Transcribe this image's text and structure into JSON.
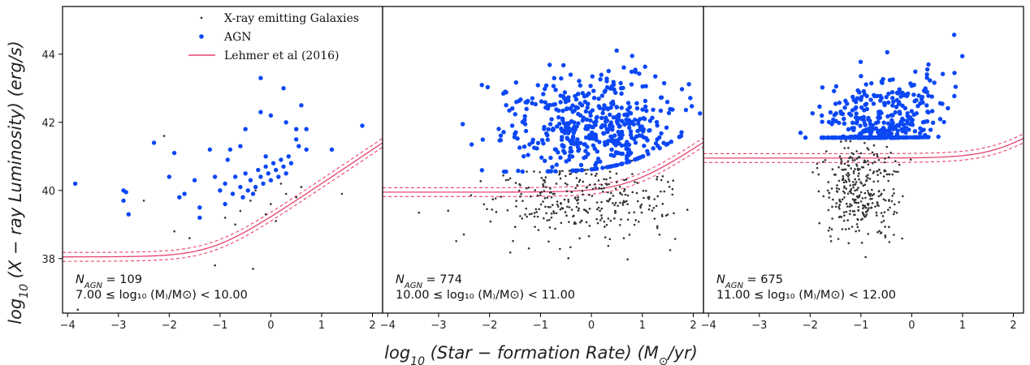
{
  "chart_data": {
    "type": "scatter",
    "ylabel_main": "log",
    "ylabel_sub": "10",
    "ylabel_rest": " (X − ray Luminosity) (erg/s)",
    "xlabel_main": "log",
    "xlabel_sub": "10",
    "xlabel_rest": " (Star − formation Rate) (M",
    "xlabel_sun": "⊙",
    "xlabel_tail": "/yr)",
    "xlim": [
      -4.1,
      2.2
    ],
    "ylim": [
      36.4,
      45.4
    ],
    "xticks": [
      -4,
      -3,
      -2,
      -1,
      0,
      1,
      2
    ],
    "yticks": [
      38,
      40,
      42,
      44
    ],
    "legend": {
      "position": "upper-left of first panel",
      "items": [
        {
          "label": "X-ray emitting Galaxies",
          "marker": "small-dot",
          "color": "#333333"
        },
        {
          "label": "AGN",
          "marker": "dot",
          "color": "#0b47f5"
        },
        {
          "label": "Lehmer et al (2016)",
          "marker": "line",
          "color": "#e8416e"
        }
      ]
    },
    "relation_color": "#e8416e",
    "galaxy_color": "#333333",
    "agn_color": "#0b47f5",
    "panels": [
      {
        "n_agn_label": "N",
        "n_agn_sub": "AGN",
        "n_agn_value": " = 109",
        "mass_label": "7.00  ≤  log₁₀ (M₎/M⊙) < 10.00",
        "relation_floor": 38.05,
        "agn": [
          [
            -3.85,
            40.2
          ],
          [
            -2.9,
            40.0
          ],
          [
            -2.85,
            39.95
          ],
          [
            -2.9,
            39.7
          ],
          [
            -2.8,
            39.3
          ],
          [
            -2.3,
            41.4
          ],
          [
            -1.9,
            41.1
          ],
          [
            -2.0,
            40.4
          ],
          [
            -1.8,
            39.8
          ],
          [
            -1.7,
            39.9
          ],
          [
            -1.5,
            40.3
          ],
          [
            -1.4,
            39.5
          ],
          [
            -1.4,
            39.2
          ],
          [
            -1.2,
            41.2
          ],
          [
            -1.0,
            40.0
          ],
          [
            -0.9,
            39.6
          ],
          [
            -0.85,
            40.9
          ],
          [
            -0.8,
            41.2
          ],
          [
            -0.75,
            39.9
          ],
          [
            -0.7,
            40.4
          ],
          [
            -0.6,
            40.1
          ],
          [
            -0.55,
            39.8
          ],
          [
            -0.5,
            40.5
          ],
          [
            -0.45,
            40.0
          ],
          [
            -0.4,
            40.3
          ],
          [
            -0.35,
            39.9
          ],
          [
            -0.3,
            40.1
          ],
          [
            -0.25,
            40.6
          ],
          [
            -0.2,
            40.4
          ],
          [
            -0.15,
            40.2
          ],
          [
            -0.1,
            40.7
          ],
          [
            -0.05,
            40.5
          ],
          [
            0.0,
            40.3
          ],
          [
            0.05,
            40.8
          ],
          [
            0.1,
            40.6
          ],
          [
            0.15,
            40.4
          ],
          [
            0.2,
            40.9
          ],
          [
            0.25,
            40.7
          ],
          [
            0.3,
            40.5
          ],
          [
            0.35,
            41.0
          ],
          [
            0.4,
            40.8
          ],
          [
            -0.2,
            42.3
          ],
          [
            -0.2,
            43.3
          ],
          [
            0.0,
            42.2
          ],
          [
            0.3,
            42.0
          ],
          [
            0.5,
            41.5
          ],
          [
            0.55,
            41.3
          ],
          [
            0.6,
            42.5
          ],
          [
            0.7,
            41.8
          ],
          [
            0.7,
            41.2
          ],
          [
            1.2,
            41.2
          ],
          [
            1.8,
            41.9
          ],
          [
            0.25,
            43.0
          ],
          [
            -0.5,
            41.8
          ],
          [
            -0.6,
            41.3
          ],
          [
            -0.1,
            41.0
          ],
          [
            0.5,
            41.8
          ],
          [
            -1.1,
            40.4
          ],
          [
            -0.9,
            40.2
          ]
        ],
        "galaxies": [
          [
            -2.5,
            39.7
          ],
          [
            -2.1,
            41.6
          ],
          [
            -1.9,
            38.8
          ],
          [
            -1.6,
            38.6
          ],
          [
            -1.1,
            37.8
          ],
          [
            -0.9,
            39.2
          ],
          [
            -0.6,
            39.4
          ],
          [
            -0.4,
            39.7
          ],
          [
            -0.35,
            37.7
          ],
          [
            -0.3,
            40.0
          ],
          [
            -0.1,
            39.3
          ],
          [
            0.0,
            39.6
          ],
          [
            0.2,
            40.2
          ],
          [
            0.3,
            39.9
          ],
          [
            0.5,
            39.8
          ],
          [
            0.6,
            40.1
          ],
          [
            1.4,
            39.9
          ],
          [
            -3.8,
            36.5
          ],
          [
            -0.7,
            39.0
          ],
          [
            0.1,
            39.1
          ]
        ]
      },
      {
        "n_agn_label": "N",
        "n_agn_sub": "AGN",
        "n_agn_value": " = 774",
        "mass_label": "10.00  ≤  log₁₀ (M₎/M⊙) < 11.00",
        "relation_floor": 39.95,
        "agn_seed": 774,
        "agn_center": [
          0.0,
          41.9
        ],
        "agn_spread": [
          0.85,
          0.75
        ],
        "agn_count": 500,
        "galaxy_center": [
          -0.2,
          39.7
        ],
        "galaxy_spread": [
          0.95,
          0.6
        ],
        "galaxy_count": 320
      },
      {
        "n_agn_label": "N",
        "n_agn_sub": "AGN",
        "n_agn_value": " = 675",
        "mass_label": "11.00  ≤  log₁₀ (M₎/M⊙) < 12.00",
        "relation_floor": 40.95,
        "agn_seed": 675,
        "agn_center": [
          -0.6,
          41.7
        ],
        "agn_spread": [
          0.6,
          0.7
        ],
        "agn_count": 420,
        "galaxy_center": [
          -1.0,
          40.1
        ],
        "galaxy_spread": [
          0.35,
          0.7
        ],
        "galaxy_count": 330
      }
    ]
  }
}
